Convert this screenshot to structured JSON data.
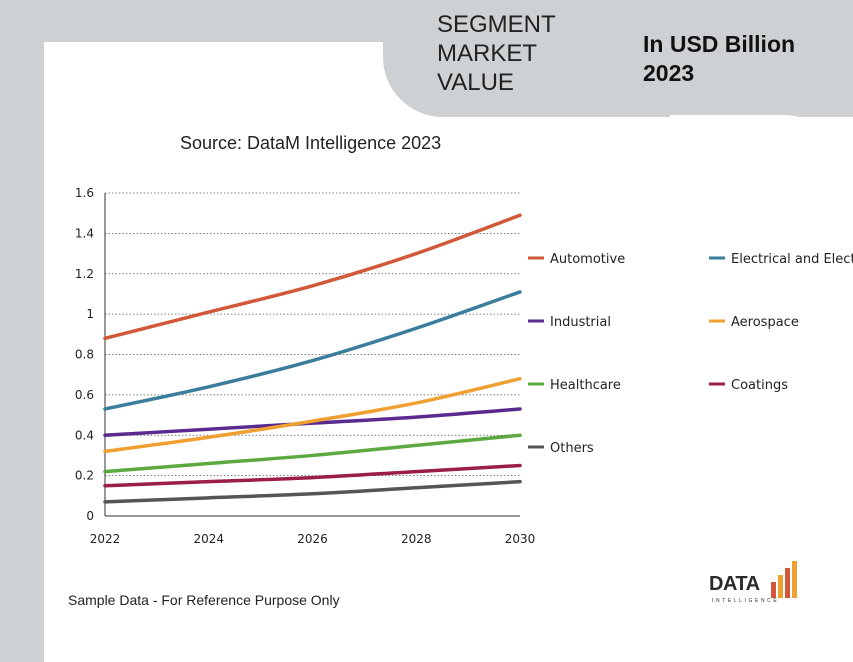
{
  "header": {
    "segment_title_lines": [
      "SEGMENT",
      "MARKET",
      "VALUE"
    ],
    "usd_title_lines": [
      "In USD Billion",
      "2023"
    ]
  },
  "footnote": "Sample Data - For Reference Purpose Only",
  "logo": {
    "main": "DATA",
    "sub": "INTELLIGENCE"
  },
  "chart_data": {
    "type": "line",
    "title": "Source: DataM Intelligence 2023",
    "xlabel": "",
    "ylabel": "",
    "x": [
      2022,
      2024,
      2026,
      2028,
      2030
    ],
    "x_tick_labels": [
      "2022",
      "2024",
      "2026",
      "2028",
      "2030"
    ],
    "y_tick_labels": [
      "0",
      "0.2",
      "0.4",
      "0.6",
      "0.8",
      "1",
      "1.2",
      "1.4",
      "1.6"
    ],
    "ylim": [
      0,
      1.6
    ],
    "grid": "horizontal-dotted",
    "legend_position": "right",
    "series": [
      {
        "name": "Automotive",
        "color": "#d2583a",
        "values": [
          0.88,
          1.01,
          1.14,
          1.3,
          1.49
        ]
      },
      {
        "name": "Electrical and Electro",
        "color": "#3a7d9c",
        "values": [
          0.53,
          0.64,
          0.77,
          0.93,
          1.11
        ]
      },
      {
        "name": "Industrial",
        "color": "#5a2a91",
        "values": [
          0.4,
          0.43,
          0.46,
          0.49,
          0.53
        ]
      },
      {
        "name": "Aerospace",
        "color": "#f0a030",
        "values": [
          0.32,
          0.39,
          0.47,
          0.56,
          0.68
        ]
      },
      {
        "name": "Healthcare",
        "color": "#5ca93f",
        "values": [
          0.22,
          0.26,
          0.3,
          0.35,
          0.4
        ]
      },
      {
        "name": "Coatings",
        "color": "#9b1d4a",
        "values": [
          0.15,
          0.17,
          0.19,
          0.22,
          0.25
        ]
      },
      {
        "name": "Others",
        "color": "#555555",
        "values": [
          0.07,
          0.09,
          0.11,
          0.14,
          0.17
        ]
      }
    ]
  }
}
